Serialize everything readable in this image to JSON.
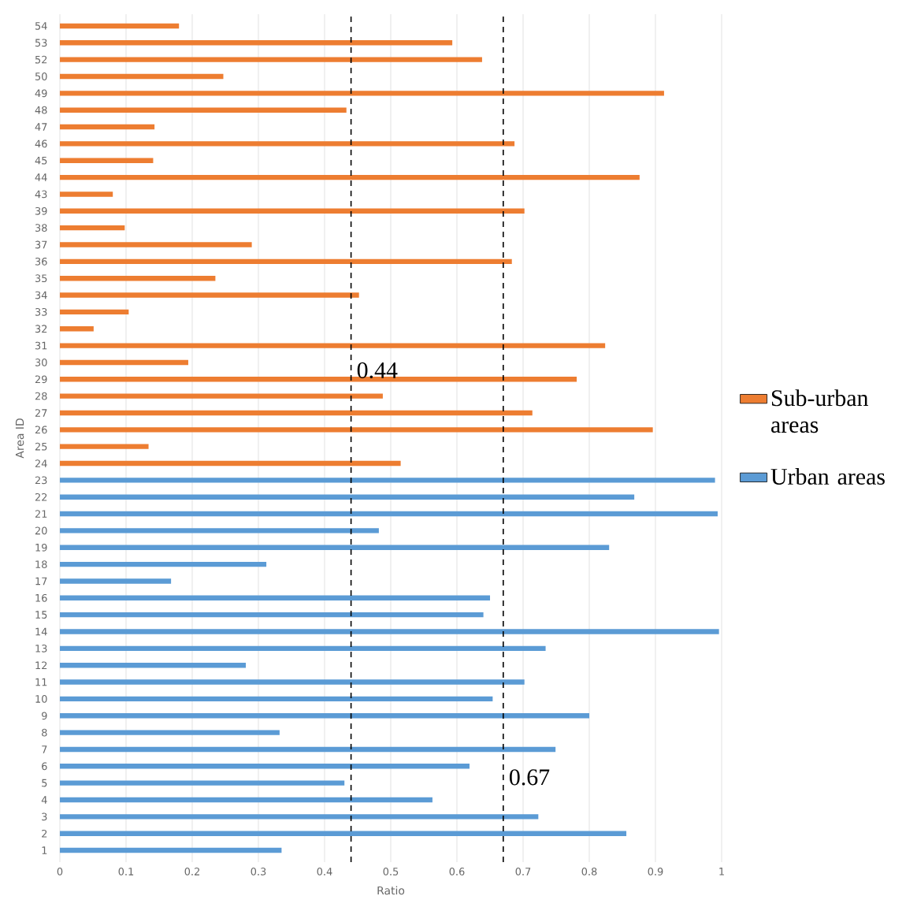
{
  "chart_data": {
    "type": "bar",
    "orientation": "horizontal",
    "xlabel": "Ratio",
    "ylabel": "Area ID",
    "categories": [
      "54",
      "53",
      "52",
      "50",
      "49",
      "48",
      "47",
      "46",
      "45",
      "44",
      "43",
      "39",
      "38",
      "37",
      "36",
      "35",
      "34",
      "33",
      "32",
      "31",
      "30",
      "29",
      "28",
      "27",
      "26",
      "25",
      "24",
      "23",
      "22",
      "21",
      "20",
      "19",
      "18",
      "17",
      "16",
      "15",
      "14",
      "13",
      "12",
      "11",
      "10",
      "9",
      "8",
      "7",
      "6",
      "5",
      "4",
      "3",
      "2",
      "1"
    ],
    "series": [
      {
        "name": "Urban areas",
        "color": "#5b9bd5",
        "values": [
          null,
          null,
          null,
          null,
          null,
          null,
          null,
          null,
          null,
          null,
          null,
          null,
          null,
          null,
          null,
          null,
          null,
          null,
          null,
          null,
          null,
          null,
          null,
          null,
          null,
          null,
          null,
          0.99,
          0.868,
          0.994,
          0.482,
          0.83,
          0.312,
          0.168,
          0.65,
          0.64,
          0.996,
          0.734,
          0.281,
          0.702,
          0.654,
          0.8,
          0.332,
          0.749,
          0.619,
          0.43,
          0.563,
          0.723,
          0.856,
          0.335
        ]
      },
      {
        "name": "Sub-urban areas",
        "color": "#ed7d31",
        "values": [
          0.18,
          0.593,
          0.638,
          0.247,
          0.913,
          0.433,
          0.143,
          0.687,
          0.141,
          0.876,
          0.08,
          0.702,
          0.098,
          0.29,
          0.683,
          0.235,
          0.452,
          0.104,
          0.051,
          0.824,
          0.194,
          0.781,
          0.488,
          0.714,
          0.896,
          0.134,
          0.515,
          null,
          null,
          null,
          null,
          null,
          null,
          null,
          null,
          null,
          null,
          null,
          null,
          null,
          null,
          null,
          null,
          null,
          null,
          null,
          null,
          null,
          null,
          null
        ]
      }
    ],
    "xlim": [
      0,
      1
    ],
    "xticks": [
      0,
      0.1,
      0.2,
      0.3,
      0.4,
      0.5,
      0.6,
      0.7,
      0.8,
      0.9,
      1
    ],
    "grid": "x",
    "legend": "right",
    "ref_lines": [
      {
        "axis": "x",
        "value": 0.44,
        "label": "0.44",
        "line_style": "dashed"
      },
      {
        "axis": "x",
        "value": 0.67,
        "label": "0.67",
        "line_style": "dashed"
      }
    ]
  }
}
